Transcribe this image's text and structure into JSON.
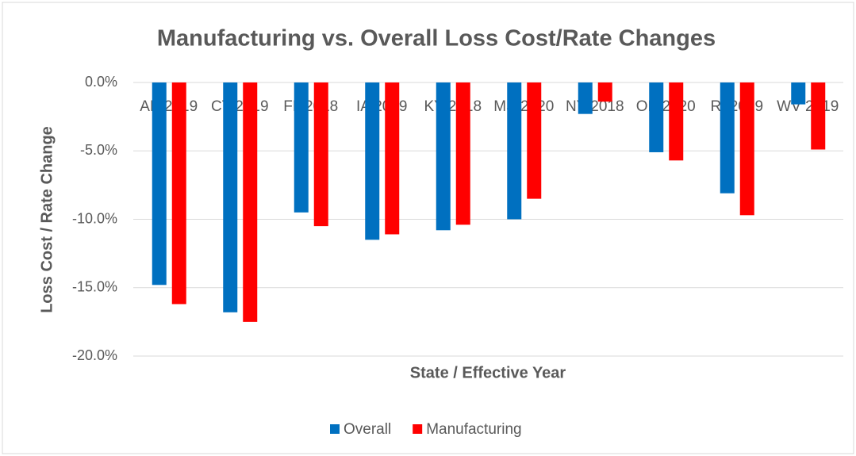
{
  "chart_data": {
    "type": "bar",
    "title": "Manufacturing vs. Overall Loss Cost/Rate Changes",
    "x_label": "State / Effective Year",
    "y_label": "Loss Cost / Rate Change",
    "categories": [
      "AK 2019",
      "CT 2019",
      "FL 2018",
      "IA 2019",
      "KY 2018",
      "MS 2020",
      "NY 2018",
      "OK 2020",
      "RI 2019",
      "WV 2019"
    ],
    "series": [
      {
        "name": "Overall",
        "color": "#0070c0",
        "values": [
          -14.8,
          -16.8,
          -9.5,
          -11.5,
          -10.8,
          -10.0,
          -2.3,
          -5.1,
          -8.1,
          -1.6
        ]
      },
      {
        "name": "Manufacturing",
        "color": "#ff0000",
        "values": [
          -16.2,
          -17.5,
          -10.5,
          -11.1,
          -10.4,
          -8.5,
          -1.4,
          -5.7,
          -9.7,
          -4.9
        ]
      }
    ],
    "ylim": [
      -20,
      0
    ],
    "yticks": [
      {
        "value": 0,
        "label": "0.0%"
      },
      {
        "value": -5,
        "label": "-5.0%"
      },
      {
        "value": -10,
        "label": "-10.0%"
      },
      {
        "value": -15,
        "label": "-15.0%"
      },
      {
        "value": -20,
        "label": "-20.0%"
      }
    ],
    "grid": true,
    "legend": "bottom"
  }
}
